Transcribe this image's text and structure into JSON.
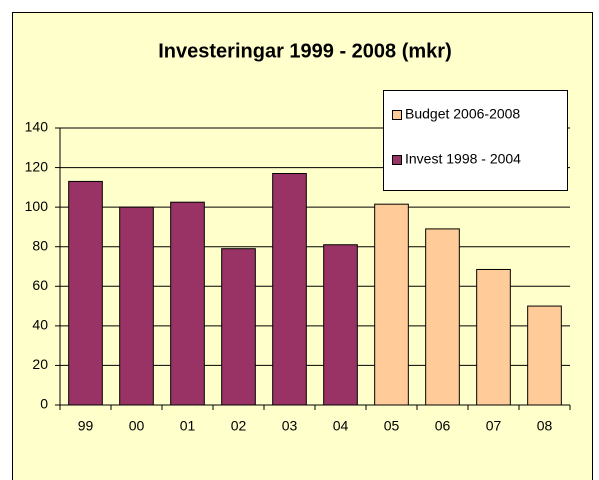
{
  "chart_data": {
    "type": "bar",
    "title": "Investeringar 1999 - 2008 (mkr)",
    "categories": [
      "99",
      "00",
      "01",
      "02",
      "03",
      "04",
      "05",
      "06",
      "07",
      "08"
    ],
    "series": [
      {
        "name": "Budget  2006-2008",
        "color": "#ffcc99",
        "values": [
          null,
          null,
          null,
          null,
          null,
          null,
          101.5,
          89,
          68.5,
          50
        ]
      },
      {
        "name": "Invest 1998 - 2004",
        "color": "#993366",
        "values": [
          113,
          100,
          102.5,
          79,
          117,
          81,
          null,
          null,
          null,
          null
        ]
      }
    ],
    "ylim": [
      0,
      140
    ],
    "yticks": [
      0,
      20,
      40,
      60,
      80,
      100,
      120,
      140
    ],
    "grid": true,
    "legend": "top-right"
  }
}
